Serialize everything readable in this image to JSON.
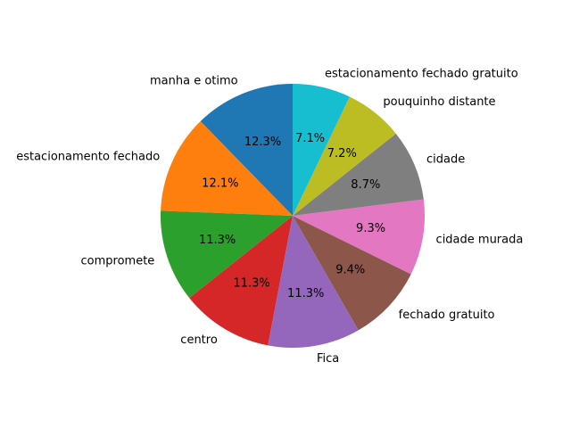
{
  "chart_data": {
    "type": "pie",
    "start_angle_deg": 90,
    "direction": "counterclockwise",
    "categories": [
      "manha e otimo",
      "estacionamento fechado",
      "compromete",
      "centro",
      "Fica",
      "fechado gratuito",
      "cidade murada",
      "cidade",
      "pouquinho distante",
      "estacionamento fechado gratuito"
    ],
    "values": [
      12.3,
      12.1,
      11.3,
      11.3,
      11.3,
      9.4,
      9.3,
      8.7,
      7.2,
      7.1
    ],
    "pct_labels": [
      "12.3%",
      "12.1%",
      "11.3%",
      "11.3%",
      "11.3%",
      "9.4%",
      "9.3%",
      "8.7%",
      "7.2%",
      "7.1%"
    ],
    "colors": [
      "#1f77b4",
      "#ff7f0e",
      "#2ca02c",
      "#d62728",
      "#9467bd",
      "#8c564b",
      "#e377c2",
      "#7f7f7f",
      "#bcbd22",
      "#17becf"
    ]
  }
}
